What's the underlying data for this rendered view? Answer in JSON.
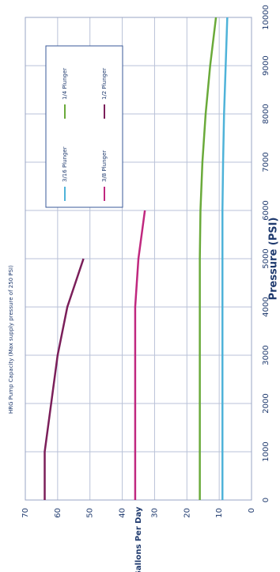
{
  "chart_data": {
    "type": "line",
    "title": "HRG Pump Capacity (Max supply pressure of 250 PSI)",
    "x_label": "Pressure (PSI)",
    "y_label": "Gallons Per Day",
    "x": [
      0,
      1000,
      2000,
      3000,
      4000,
      5000,
      6000,
      7000,
      8000,
      9000,
      10000
    ],
    "series": [
      {
        "name": "3/16 Plunger",
        "color": "#4fb3d9",
        "values": [
          9,
          9,
          9,
          9,
          9,
          9,
          9,
          8.8,
          8.5,
          8,
          7.5
        ]
      },
      {
        "name": "1/4 Plunger",
        "color": "#6aaa3a",
        "values": [
          16,
          16,
          16,
          16,
          16,
          16,
          15.8,
          15.2,
          14.2,
          12.8,
          11
        ]
      },
      {
        "name": "3/8 Plunger",
        "color": "#c0287f",
        "values": [
          36,
          36,
          36,
          36,
          36,
          35,
          33,
          null,
          null,
          null,
          null
        ]
      },
      {
        "name": "1/2 Plunger",
        "color": "#7b1f5a",
        "values": [
          64,
          64,
          62,
          60,
          57,
          52,
          null,
          null,
          null,
          null,
          null
        ]
      }
    ],
    "xlim": [
      0,
      10000
    ],
    "xticks": [
      0,
      1000,
      2000,
      3000,
      4000,
      5000,
      6000,
      7000,
      8000,
      9000,
      10000
    ],
    "ylim": [
      0,
      70
    ],
    "yticks": [
      0,
      10,
      20,
      30,
      40,
      50,
      60,
      70
    ],
    "grid": true,
    "legend_loc": "upper right"
  }
}
